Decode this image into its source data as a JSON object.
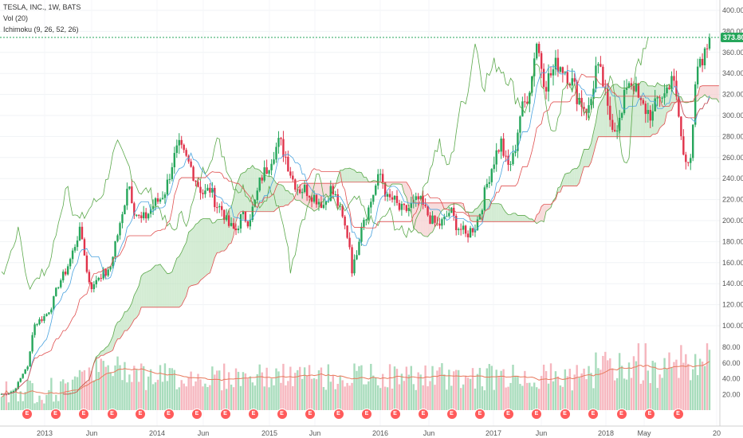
{
  "legend": {
    "symbol": "TESLA, INC., 1W, BATS",
    "volume": "Vol (20)",
    "ichimoku": "Ichimoku (9, 26, 52, 26)"
  },
  "last_price_label": "373.80",
  "earnings_marker_label": "E",
  "earnings_count": 24,
  "colors": {
    "up": "#26a65b",
    "down": "#e0324a",
    "cloud_bull": "#b7e0b7",
    "cloud_bear": "#f4c5c5",
    "tenkan": "#4aa3df",
    "kijun": "#e05050",
    "span": "#5aa84a",
    "vol_ma": "#e87a5d"
  },
  "chart_data": {
    "type": "candlestick",
    "title": "TESLA, INC., 1W, BATS",
    "ylim": [
      0,
      410
    ],
    "price_ticks": [
      "400.00",
      "380.00",
      "360.00",
      "340.00",
      "320.00",
      "300.00",
      "280.00",
      "260.00",
      "240.00",
      "220.00",
      "200.00",
      "180.00",
      "160.00",
      "140.00",
      "120.00",
      "100.00"
    ],
    "volume_ticks": [
      "80.00",
      "60.00",
      "40.00",
      "20.00"
    ],
    "x_labels": [
      "2013",
      "Jun",
      "2014",
      "Jun",
      "2015",
      "Jun",
      "2016",
      "Jun",
      "2017",
      "Jun",
      "2018",
      "May",
      "20"
    ],
    "last_close": 373.8,
    "close_path": [
      [
        0,
        35
      ],
      [
        0.05,
        35
      ],
      [
        0.1,
        36
      ],
      [
        0.2,
        38
      ],
      [
        0.3,
        50
      ],
      [
        0.38,
        60
      ],
      [
        0.42,
        60
      ],
      [
        0.5,
        100
      ],
      [
        0.6,
        105
      ],
      [
        0.7,
        110
      ],
      [
        0.8,
        120
      ],
      [
        0.9,
        140
      ],
      [
        1.0,
        150
      ],
      [
        1.1,
        165
      ],
      [
        1.2,
        185
      ],
      [
        1.25,
        190
      ],
      [
        1.3,
        175
      ],
      [
        1.35,
        150
      ],
      [
        1.4,
        140
      ],
      [
        1.45,
        135
      ],
      [
        1.5,
        145
      ],
      [
        1.6,
        150
      ],
      [
        1.7,
        150
      ],
      [
        1.8,
        180
      ],
      [
        1.9,
        200
      ],
      [
        2.0,
        240
      ],
      [
        2.1,
        210
      ],
      [
        2.2,
        200
      ],
      [
        2.3,
        205
      ],
      [
        2.4,
        215
      ],
      [
        2.5,
        220
      ],
      [
        2.6,
        230
      ],
      [
        2.7,
        255
      ],
      [
        2.8,
        270
      ],
      [
        2.9,
        260
      ],
      [
        3.0,
        250
      ],
      [
        3.1,
        235
      ],
      [
        3.2,
        225
      ],
      [
        3.3,
        230
      ],
      [
        3.4,
        215
      ],
      [
        3.5,
        210
      ],
      [
        3.55,
        200
      ],
      [
        3.6,
        195
      ],
      [
        3.7,
        190
      ],
      [
        3.8,
        205
      ],
      [
        3.9,
        200
      ],
      [
        4.0,
        215
      ],
      [
        4.1,
        240
      ],
      [
        4.2,
        250
      ],
      [
        4.3,
        265
      ],
      [
        4.4,
        275
      ],
      [
        4.5,
        260
      ],
      [
        4.6,
        240
      ],
      [
        4.7,
        230
      ],
      [
        4.8,
        230
      ],
      [
        4.9,
        225
      ],
      [
        5.0,
        220
      ],
      [
        5.1,
        215
      ],
      [
        5.2,
        230
      ],
      [
        5.3,
        220
      ],
      [
        5.4,
        200
      ],
      [
        5.5,
        180
      ],
      [
        5.55,
        150
      ],
      [
        5.6,
        165
      ],
      [
        5.7,
        200
      ],
      [
        5.8,
        210
      ],
      [
        5.9,
        230
      ],
      [
        6.0,
        245
      ],
      [
        6.1,
        220
      ],
      [
        6.2,
        220
      ],
      [
        6.3,
        210
      ],
      [
        6.4,
        210
      ],
      [
        6.5,
        215
      ],
      [
        6.6,
        220
      ],
      [
        6.7,
        210
      ],
      [
        6.8,
        200
      ],
      [
        6.9,
        195
      ],
      [
        7.0,
        200
      ],
      [
        7.1,
        210
      ],
      [
        7.2,
        195
      ],
      [
        7.3,
        190
      ],
      [
        7.35,
        185
      ],
      [
        7.4,
        190
      ],
      [
        7.5,
        195
      ],
      [
        7.6,
        215
      ],
      [
        7.7,
        240
      ],
      [
        7.8,
        260
      ],
      [
        7.9,
        275
      ],
      [
        8.0,
        250
      ],
      [
        8.1,
        260
      ],
      [
        8.2,
        300
      ],
      [
        8.3,
        315
      ],
      [
        8.4,
        340
      ],
      [
        8.45,
        375
      ],
      [
        8.5,
        360
      ],
      [
        8.6,
        330
      ],
      [
        8.7,
        340
      ],
      [
        8.8,
        350
      ],
      [
        8.9,
        345
      ],
      [
        9.0,
        335
      ],
      [
        9.1,
        320
      ],
      [
        9.2,
        310
      ],
      [
        9.3,
        305
      ],
      [
        9.4,
        345
      ],
      [
        9.5,
        335
      ],
      [
        9.6,
        300
      ],
      [
        9.7,
        290
      ],
      [
        9.8,
        295
      ],
      [
        9.9,
        335
      ],
      [
        10.0,
        330
      ],
      [
        10.1,
        310
      ],
      [
        10.2,
        305
      ],
      [
        10.3,
        300
      ],
      [
        10.4,
        320
      ],
      [
        10.5,
        320
      ],
      [
        10.6,
        340
      ],
      [
        10.7,
        305
      ],
      [
        10.8,
        255
      ],
      [
        10.9,
        265
      ],
      [
        11.0,
        340
      ],
      [
        11.1,
        350
      ],
      [
        11.2,
        373.8
      ]
    ]
  }
}
